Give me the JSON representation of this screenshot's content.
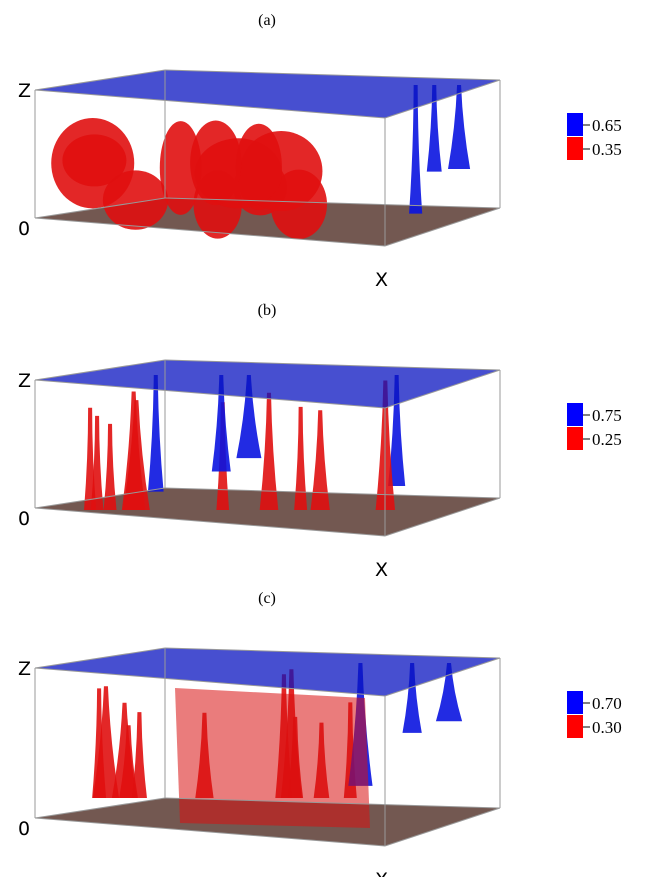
{
  "panels": [
    {
      "label": "(a)",
      "axes": {
        "z": "Z",
        "zero": "0",
        "x": "X"
      },
      "legend": [
        {
          "value": "0.65",
          "color": "#0000ff"
        },
        {
          "value": "0.35",
          "color": "#ff0000"
        }
      ]
    },
    {
      "label": "(b)",
      "axes": {
        "z": "Z",
        "zero": "0",
        "x": "X"
      },
      "legend": [
        {
          "value": "0.75",
          "color": "#0000ff"
        },
        {
          "value": "0.25",
          "color": "#ff0000"
        }
      ]
    },
    {
      "label": "(c)",
      "axes": {
        "z": "Z",
        "zero": "0",
        "x": "X"
      },
      "legend": [
        {
          "value": "0.70",
          "color": "#0000ff"
        },
        {
          "value": "0.30",
          "color": "#ff0000"
        }
      ]
    }
  ]
}
